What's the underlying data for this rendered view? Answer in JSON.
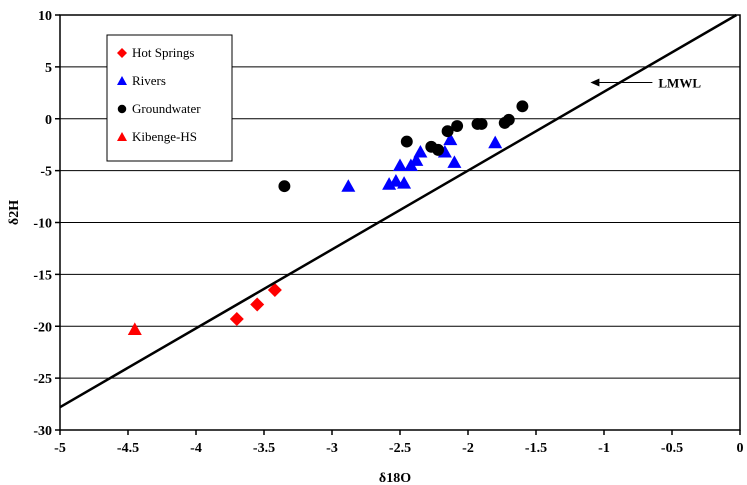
{
  "chart_data": {
    "type": "scatter",
    "title": "",
    "xlabel": "δ18O",
    "ylabel": "δ2H",
    "xlim": [
      -5,
      0
    ],
    "ylim": [
      -30,
      10
    ],
    "x_ticks": [
      -5,
      -4.5,
      -4,
      -3.5,
      -3,
      -2.5,
      -2,
      -1.5,
      -1,
      -0.5,
      0
    ],
    "y_ticks": [
      -30,
      -25,
      -20,
      -15,
      -10,
      -5,
      0,
      5,
      10
    ],
    "x_tick_labels": [
      "-5",
      "-4.5",
      "-4",
      "-3.5",
      "-3",
      "-2.5",
      "-2",
      "-1.5",
      "-1",
      "-0.5",
      "0"
    ],
    "y_tick_labels": [
      "-30",
      "-25",
      "-20",
      "-15",
      "-10",
      "-5",
      "0",
      "5",
      "10"
    ],
    "grid": "horizontal",
    "legend_position": "top-left",
    "series": [
      {
        "name": "Hot Springs",
        "marker": "diamond",
        "color": "#ff0000",
        "x": [
          -3.7,
          -3.55,
          -3.42
        ],
        "y": [
          -19.3,
          -17.9,
          -16.5
        ]
      },
      {
        "name": "Rivers",
        "marker": "triangle",
        "color": "#0000ff",
        "x": [
          -2.88,
          -2.58,
          -2.53,
          -2.5,
          -2.47,
          -2.42,
          -2.38,
          -2.35,
          -2.17,
          -2.13,
          -2.1,
          -1.8
        ],
        "y": [
          -6.5,
          -6.3,
          -6.0,
          -4.5,
          -6.2,
          -4.5,
          -4.0,
          -3.2,
          -3.2,
          -2.0,
          -4.2,
          -2.3
        ]
      },
      {
        "name": "Groundwater",
        "marker": "circle",
        "color": "#000000",
        "x": [
          -3.35,
          -2.45,
          -2.27,
          -2.22,
          -2.15,
          -2.08,
          -1.93,
          -1.9,
          -1.73,
          -1.7,
          -1.6
        ],
        "y": [
          -6.5,
          -2.2,
          -2.7,
          -3.0,
          -1.2,
          -0.7,
          -0.5,
          -0.5,
          -0.4,
          -0.1,
          1.2
        ]
      },
      {
        "name": "Kibenge-HS",
        "marker": "triangle",
        "color": "#ff0000",
        "x": [
          -4.45
        ],
        "y": [
          -20.3
        ]
      }
    ],
    "line": {
      "name": "LMWL",
      "slope": 7.6,
      "intercept": 10.2,
      "color": "#000000"
    },
    "annotation": {
      "text": "LMWL",
      "points_to_x": -1.1,
      "points_to_y": 3.5
    }
  }
}
